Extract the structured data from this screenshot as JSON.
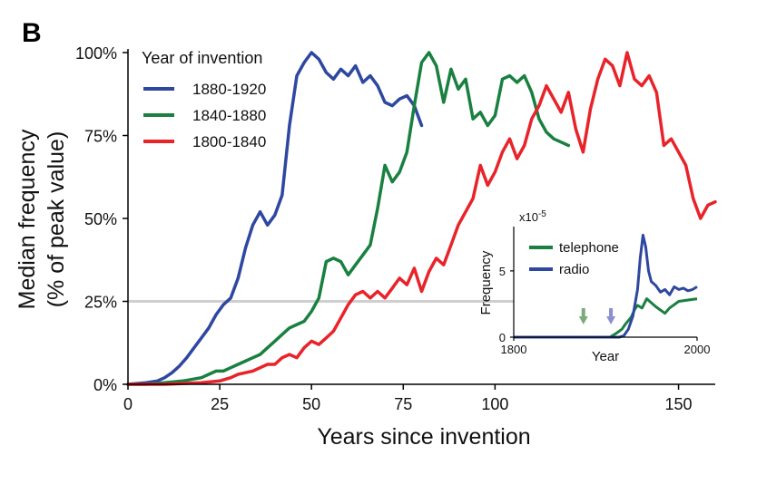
{
  "panel_label": "B",
  "colors": {
    "series_1880_1920": "#2e47a0",
    "series_1840_1880": "#1a8040",
    "series_1800_1840": "#e8232a",
    "reference_line": "#cfcfcf",
    "inset_arrow_telephone": "#7aab7a",
    "inset_arrow_radio": "#8a90d0"
  },
  "chart_data": [
    {
      "type": "line",
      "xlabel": "Years since invention",
      "ylabel_line1": "Median frequency",
      "ylabel_line2": "(% of peak value)",
      "xlim": [
        0,
        160
      ],
      "ylim": [
        0,
        100
      ],
      "xticks": [
        0,
        25,
        50,
        75,
        100,
        150
      ],
      "xtick_labels": [
        "0",
        "25",
        "50",
        "75",
        "100",
        "150"
      ],
      "yticks": [
        0,
        25,
        50,
        75,
        100
      ],
      "ytick_labels": [
        "0%",
        "25%",
        "50%",
        "75%",
        "100%"
      ],
      "reference_line_y": 25,
      "legend_title": "Year of invention",
      "legend_position": "top-left",
      "series": [
        {
          "name": "1880-1920",
          "color": "#2e47a0",
          "x": [
            0,
            5,
            8,
            10,
            12,
            14,
            16,
            18,
            20,
            22,
            24,
            26,
            28,
            30,
            32,
            34,
            36,
            38,
            40,
            42,
            44,
            46,
            48,
            50,
            52,
            54,
            56,
            58,
            60,
            62,
            64,
            66,
            68,
            70,
            72,
            74,
            76,
            78,
            80
          ],
          "y": [
            0,
            0.5,
            1,
            2,
            3.5,
            5.5,
            8,
            11,
            14,
            17,
            21,
            24,
            26,
            32,
            41,
            48,
            52,
            48,
            51,
            57,
            78,
            93,
            97,
            100,
            98,
            94,
            92,
            95,
            93,
            96,
            91,
            93,
            90,
            85,
            84,
            86,
            87,
            84,
            78
          ]
        },
        {
          "name": "1840-1880",
          "color": "#1a8040",
          "x": [
            0,
            5,
            10,
            15,
            20,
            22,
            24,
            26,
            28,
            30,
            32,
            34,
            36,
            38,
            40,
            42,
            44,
            46,
            48,
            50,
            52,
            54,
            56,
            58,
            60,
            62,
            64,
            66,
            68,
            70,
            72,
            74,
            76,
            78,
            80,
            82,
            84,
            86,
            88,
            90,
            92,
            94,
            96,
            98,
            100,
            102,
            104,
            106,
            108,
            110,
            112,
            114,
            116,
            118,
            120
          ],
          "y": [
            0,
            0,
            0.5,
            1,
            2,
            3,
            4,
            4,
            5,
            6,
            7,
            8,
            9,
            11,
            13,
            15,
            17,
            18,
            19,
            22,
            26,
            37,
            38,
            37,
            33,
            36,
            39,
            42,
            53,
            66,
            61,
            64,
            70,
            84,
            97,
            100,
            96,
            85,
            95,
            89,
            92,
            80,
            82,
            78,
            81,
            92,
            93,
            91,
            93,
            88,
            80,
            76,
            74,
            73,
            72
          ]
        },
        {
          "name": "1800-1840",
          "color": "#e8232a",
          "x": [
            0,
            10,
            20,
            25,
            28,
            30,
            32,
            34,
            36,
            38,
            40,
            42,
            44,
            46,
            48,
            50,
            52,
            54,
            56,
            58,
            60,
            62,
            64,
            66,
            68,
            70,
            72,
            74,
            76,
            78,
            80,
            82,
            84,
            86,
            88,
            90,
            92,
            94,
            96,
            98,
            100,
            102,
            104,
            106,
            108,
            110,
            112,
            114,
            116,
            118,
            120,
            122,
            124,
            126,
            128,
            130,
            132,
            134,
            136,
            138,
            140,
            142,
            144,
            146,
            148,
            150,
            152,
            154,
            156,
            158,
            160
          ],
          "y": [
            0,
            0,
            0.5,
            1,
            2,
            3,
            3.5,
            4,
            5,
            6,
            6,
            8,
            9,
            8,
            11,
            13,
            12,
            14,
            16,
            20,
            24,
            27,
            28,
            26,
            28,
            26,
            29,
            32,
            30,
            35,
            28,
            34,
            38,
            36,
            42,
            48,
            52,
            56,
            66,
            60,
            64,
            70,
            74,
            68,
            72,
            80,
            84,
            90,
            86,
            82,
            88,
            77,
            70,
            83,
            92,
            98,
            96,
            90,
            100,
            92,
            90,
            93,
            88,
            72,
            74,
            70,
            66,
            56,
            50,
            54,
            55
          ]
        }
      ]
    },
    {
      "type": "line",
      "xlabel": "Year",
      "ylabel": "Frequency",
      "scale_note": "x10",
      "scale_exponent": "-5",
      "xlim": [
        1800,
        2000
      ],
      "ylim": [
        0,
        8
      ],
      "xticks": [
        1800,
        2000
      ],
      "xtick_labels": [
        "1800",
        "2000"
      ],
      "yticks": [
        0,
        5
      ],
      "ytick_labels": [
        "0",
        "5"
      ],
      "arrows": [
        {
          "x": 1876,
          "color": "#7aab7a"
        },
        {
          "x": 1906,
          "color": "#8a90d0"
        }
      ],
      "series": [
        {
          "name": "telephone",
          "color": "#1a8040",
          "x": [
            1800,
            1860,
            1876,
            1895,
            1905,
            1912,
            1918,
            1922,
            1928,
            1932,
            1935,
            1940,
            1945,
            1955,
            1965,
            1970,
            1980,
            2000
          ],
          "y": [
            0,
            0,
            0,
            0,
            0,
            0.3,
            0.6,
            1.0,
            1.5,
            2.1,
            2.4,
            2.2,
            2.9,
            2.3,
            1.8,
            2.2,
            2.7,
            2.9
          ]
        },
        {
          "name": "radio",
          "color": "#2e47a0",
          "x": [
            1800,
            1900,
            1915,
            1920,
            1925,
            1930,
            1935,
            1938,
            1941,
            1944,
            1947,
            1950,
            1955,
            1960,
            1965,
            1970,
            1975,
            1980,
            1985,
            1990,
            1995,
            2000
          ],
          "y": [
            0,
            0,
            0,
            0.1,
            0.6,
            1.6,
            3.6,
            6.0,
            7.7,
            6.8,
            5.0,
            4.2,
            3.9,
            3.4,
            3.6,
            3.2,
            3.8,
            3.6,
            3.7,
            3.5,
            3.6,
            3.8
          ]
        }
      ]
    }
  ]
}
